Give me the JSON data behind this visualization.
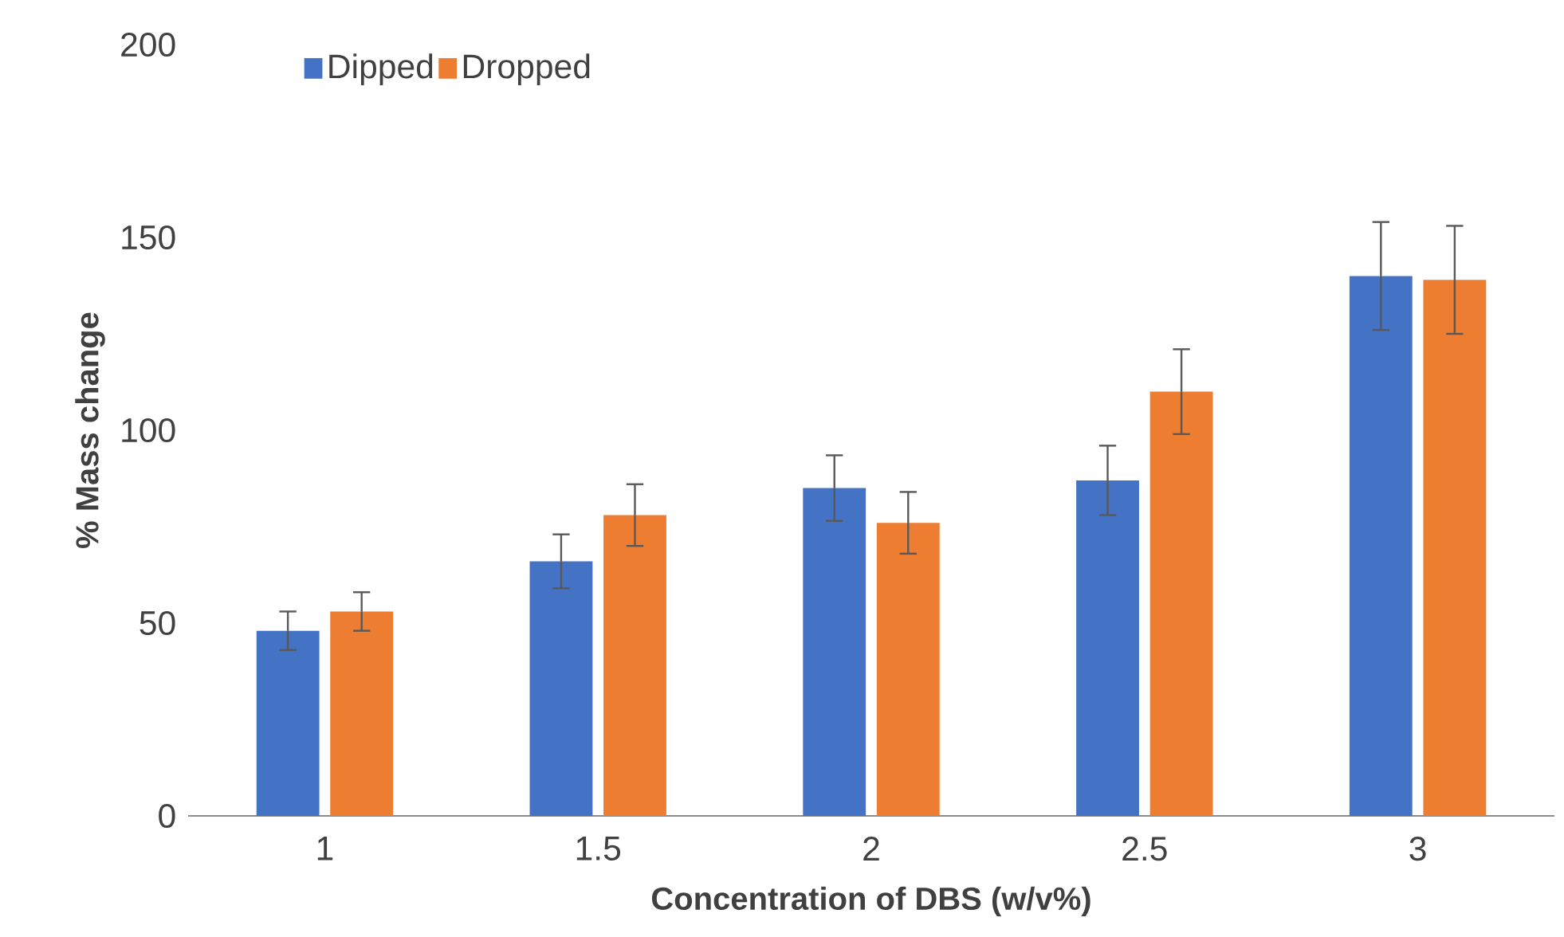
{
  "chart_data": {
    "type": "bar",
    "xlabel": "Concentration of DBS (w/v%)",
    "ylabel": "% Mass change",
    "categories": [
      "1",
      "1.5",
      "2",
      "2.5",
      "3"
    ],
    "series": [
      {
        "name": "Dipped",
        "color": "#4472c4",
        "values": [
          48,
          66,
          85,
          87,
          140
        ],
        "errors": [
          5,
          7,
          8.5,
          9,
          14
        ]
      },
      {
        "name": "Dropped",
        "color": "#ed7d31",
        "values": [
          53,
          78,
          76,
          110,
          139
        ],
        "errors": [
          5,
          8,
          8,
          11,
          14
        ]
      }
    ],
    "ylim": [
      0,
      200
    ],
    "yticks": [
      0,
      50,
      100,
      150,
      200
    ],
    "legend": "top left"
  }
}
